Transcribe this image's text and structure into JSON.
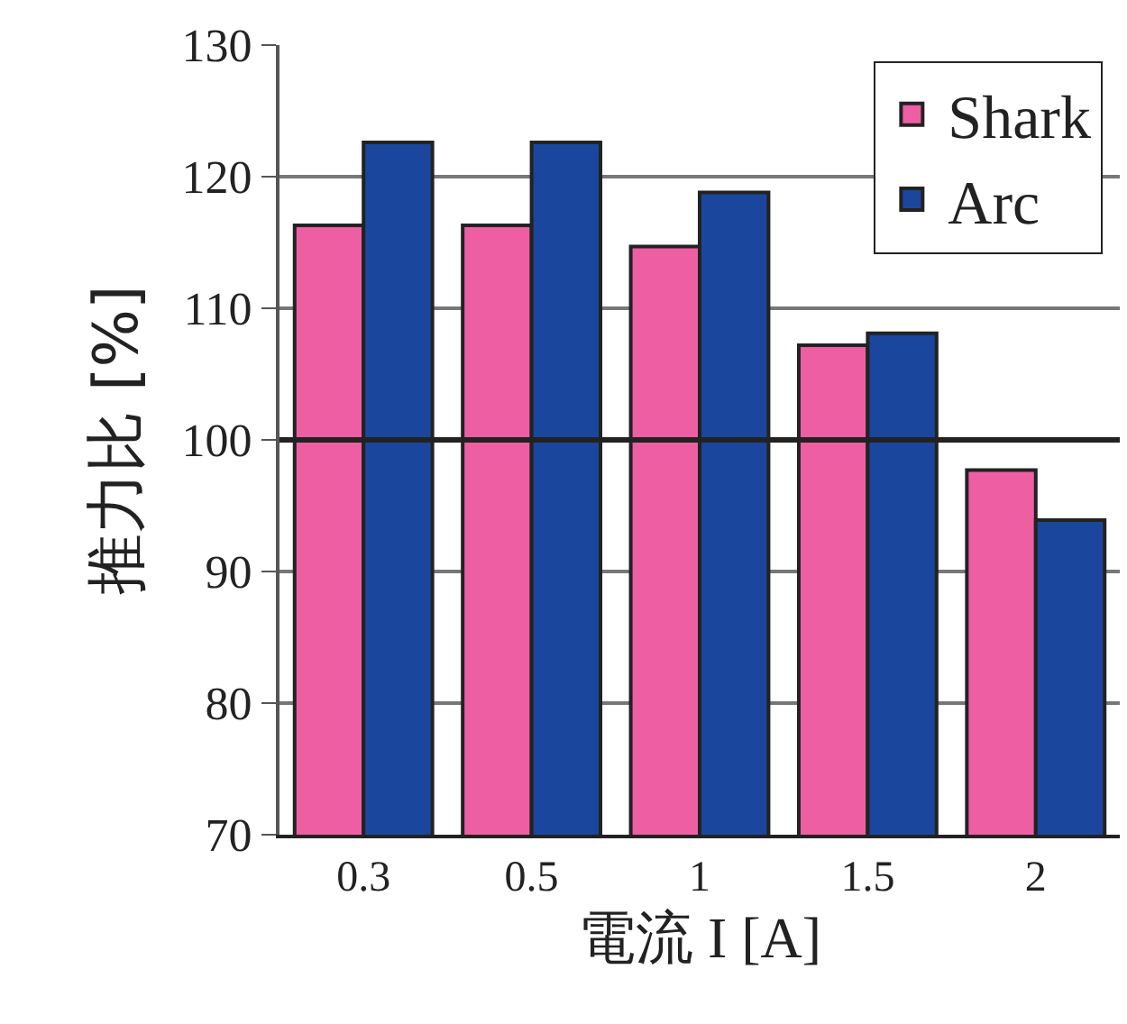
{
  "chart_data": {
    "type": "bar",
    "xlabel": "電流 I [A]",
    "ylabel": "推力比 [%]",
    "categories": [
      "0.3",
      "0.5",
      "1",
      "1.5",
      "2"
    ],
    "series": [
      {
        "name": "Shark",
        "color": "#ee5ea3",
        "values": [
          116.3,
          116.3,
          114.7,
          107.2,
          97.7
        ]
      },
      {
        "name": "Arc",
        "color": "#1a479d",
        "values": [
          122.6,
          122.6,
          118.8,
          108.1,
          93.9
        ]
      }
    ],
    "ylim": [
      70,
      130
    ],
    "yticks": [
      70,
      80,
      90,
      100,
      110,
      120,
      130
    ],
    "grid": "y",
    "legend": "top right",
    "ref_lines": [
      {
        "axis": "y",
        "value": 100,
        "color": "#222222"
      }
    ]
  }
}
